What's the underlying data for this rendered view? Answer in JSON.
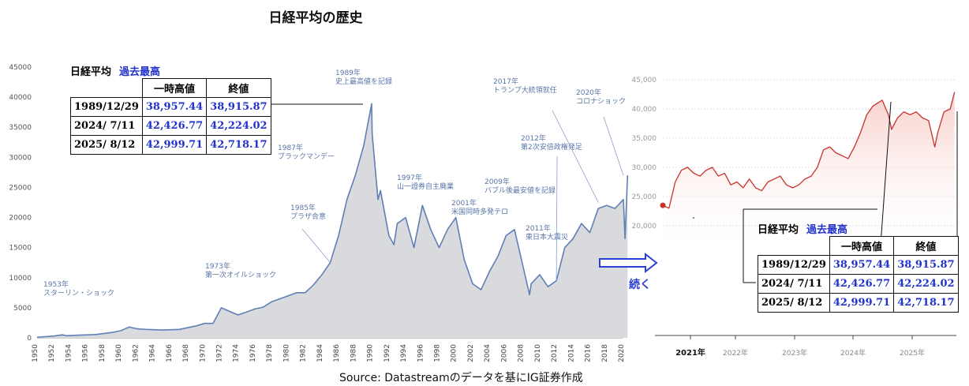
{
  "title": "日経平均の歴史",
  "source": "Source: Datastreamのデータを基にIG証券作成",
  "continue_label": "続く",
  "colors": {
    "main_line": "#5f7fb5",
    "main_fill": "#d9dadd",
    "recent_line": "#c8322a",
    "recent_fill": "#f7c9c4",
    "table_blue": "#2233cc",
    "arrow_blue": "#2a3fd6"
  },
  "record_table": {
    "title": "日経平均",
    "title_highlight": "過去最高",
    "col_high": "一時高値",
    "col_close": "終値",
    "rows": [
      {
        "date": "1989/12/29",
        "high": "38,957.44",
        "close": "38,915.87"
      },
      {
        "date": "2024/ 7/11",
        "high": "42,426.77",
        "close": "42,224.02"
      },
      {
        "date": "2025/ 8/12",
        "high": "42,999.71",
        "close": "42,718.17"
      }
    ]
  },
  "chart_data": [
    {
      "type": "area",
      "title": "日経平均の歴史",
      "ylim": [
        0,
        45000
      ],
      "yticks": [
        0,
        5000,
        10000,
        15000,
        20000,
        25000,
        30000,
        35000,
        40000,
        45000
      ],
      "xlim": [
        1950,
        2020
      ],
      "xticks": [
        "1950",
        "1952",
        "1954",
        "1956",
        "1958",
        "1960",
        "1962",
        "1964",
        "1966",
        "1968",
        "1970",
        "1972",
        "1974",
        "1976",
        "1978",
        "1980",
        "1982",
        "1984",
        "1986",
        "1988",
        "1990",
        "1992",
        "1994",
        "1996",
        "1998",
        "2000",
        "2002",
        "2004",
        "2006",
        "2008",
        "2010",
        "2012",
        "2014",
        "2016",
        "2018",
        "2020"
      ],
      "series": [
        {
          "x": [
            1950,
            1952,
            1953,
            1953.5,
            1955,
            1957,
            1959,
            1960,
            1961,
            1962,
            1963,
            1965,
            1967,
            1969,
            1970,
            1971,
            1972,
            1973,
            1974,
            1975,
            1976,
            1977,
            1978,
            1979,
            1980,
            1981,
            1982,
            1983,
            1984,
            1985,
            1986,
            1987,
            1988,
            1989,
            1989.95,
            1990,
            1990.7,
            1991,
            1992,
            1992.6,
            1993,
            1994,
            1995,
            1996,
            1997,
            1998,
            1999,
            2000,
            2001,
            2002,
            2003,
            2004,
            2005,
            2006,
            2007,
            2008,
            2008.8,
            2009,
            2010,
            2011,
            2012,
            2013,
            2014,
            2015,
            2016,
            2017,
            2018,
            2019,
            2020,
            2020.2,
            2020.5
          ],
          "values": [
            100,
            300,
            500,
            350,
            450,
            550,
            900,
            1200,
            1800,
            1500,
            1400,
            1300,
            1400,
            2000,
            2400,
            2400,
            5000,
            4400,
            3800,
            4300,
            4800,
            5100,
            6000,
            6500,
            7000,
            7500,
            7500,
            8800,
            10500,
            12500,
            17000,
            23000,
            27000,
            32000,
            38915,
            34000,
            23000,
            24500,
            17000,
            15500,
            19000,
            20000,
            15000,
            22000,
            18000,
            15000,
            18000,
            20000,
            13000,
            9000,
            8000,
            11000,
            13500,
            17000,
            18000,
            12000,
            7162,
            9000,
            10500,
            8500,
            9500,
            15000,
            16500,
            19000,
            17500,
            21500,
            22000,
            21500,
            23000,
            16500,
            27000
          ],
          "color": "#5f7fb5"
        }
      ],
      "annotations": [
        {
          "x": 1953,
          "text": [
            "1953年",
            "スターリン・ショック"
          ]
        },
        {
          "x": 1973,
          "text": [
            "1973年",
            "第一次オイルショック"
          ]
        },
        {
          "x": 1985,
          "text": [
            "1985年",
            "プラザ合意"
          ]
        },
        {
          "x": 1987,
          "text": [
            "1987年",
            "ブラックマンデー"
          ]
        },
        {
          "x": 1989,
          "text": [
            "1989年",
            "史上最高値を記録"
          ]
        },
        {
          "x": 1997,
          "text": [
            "1997年",
            "山一證券自主廃業"
          ]
        },
        {
          "x": 2001,
          "text": [
            "2001年",
            "米国同時多発テロ"
          ]
        },
        {
          "x": 2009,
          "text": [
            "2009年",
            "バブル後最安値を記録"
          ]
        },
        {
          "x": 2011,
          "text": [
            "2011年",
            "東日本大震災"
          ]
        },
        {
          "x": 2012,
          "text": [
            "2012年",
            "第2次安倍政権発足"
          ]
        },
        {
          "x": 2017,
          "text": [
            "2017年",
            "トランプ大統領就任"
          ]
        },
        {
          "x": 2020,
          "text": [
            "2020年",
            "コロナショック"
          ]
        }
      ]
    },
    {
      "type": "area",
      "ylim": [
        20000,
        45000
      ],
      "yticks": [
        "20,000",
        "25,000",
        "30,000",
        "35,000",
        "40,000",
        "45,000"
      ],
      "xticks": [
        "2021年",
        "2022年",
        "2023年",
        "2024年",
        "2025年"
      ],
      "series": [
        {
          "x": [
            2020.9,
            2021.0,
            2021.1,
            2021.2,
            2021.3,
            2021.4,
            2021.5,
            2021.6,
            2021.7,
            2021.8,
            2021.9,
            2022.0,
            2022.1,
            2022.2,
            2022.3,
            2022.4,
            2022.5,
            2022.6,
            2022.7,
            2022.8,
            2022.9,
            2023.0,
            2023.1,
            2023.2,
            2023.3,
            2023.4,
            2023.5,
            2023.6,
            2023.7,
            2023.8,
            2023.9,
            2024.0,
            2024.1,
            2024.2,
            2024.3,
            2024.45,
            2024.55,
            2024.6,
            2024.7,
            2024.8,
            2024.9,
            2025.0,
            2025.1,
            2025.2,
            2025.3,
            2025.35,
            2025.45,
            2025.55,
            2025.62
          ],
          "values": [
            23500,
            23000,
            27500,
            29500,
            30000,
            29000,
            28500,
            29500,
            30000,
            28500,
            29000,
            27000,
            27500,
            26500,
            28000,
            26500,
            26000,
            27500,
            28000,
            28500,
            27000,
            26500,
            27000,
            28000,
            28500,
            30000,
            33000,
            33500,
            32500,
            32000,
            31500,
            33500,
            36000,
            39000,
            40500,
            41500,
            39000,
            36500,
            38500,
            39500,
            39000,
            39500,
            38500,
            38000,
            33500,
            36000,
            39500,
            40000,
            42900
          ],
          "color": "#c8322a"
        }
      ]
    }
  ]
}
